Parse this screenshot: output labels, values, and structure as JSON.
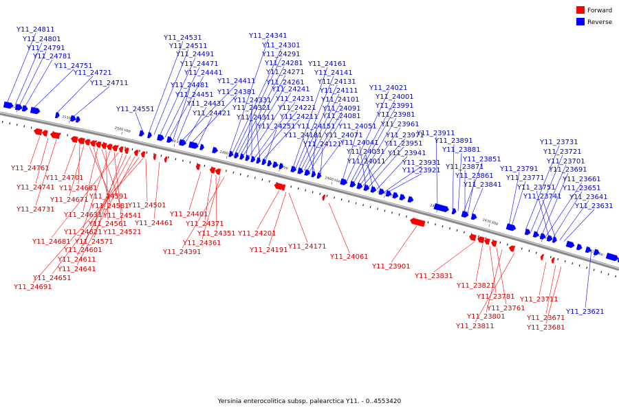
{
  "caption": "Yersinia enterocolitica subsp. palearctica Y11. - 0..4553420",
  "legend": [
    {
      "label": "Forward",
      "color": "#ff0000"
    },
    {
      "label": "Reverse",
      "color": "#0000ff"
    }
  ],
  "scale_labels": [
    {
      "text": "2520 kbp",
      "pos": 2520
    },
    {
      "text": "2510 kbp",
      "pos": 2510
    },
    {
      "text": "2500 kbp",
      "pos": 2500
    },
    {
      "text": "2490 kbp",
      "pos": 2490
    },
    {
      "text": "2480 kbp",
      "pos": 2480
    },
    {
      "text": "2470 kbp",
      "pos": 2470
    },
    {
      "text": "2460 kbp",
      "pos": 2460
    },
    {
      "text": "2450 kbp",
      "pos": 2450
    },
    {
      "text": "2440 kbp",
      "pos": 2440
    },
    {
      "text": "2430 kbp",
      "pos": 2430
    },
    {
      "text": "2420 kbp",
      "pos": 2420
    },
    {
      "text": "2410 kbp",
      "pos": 2410
    }
  ],
  "reverse_labels": [
    "Y11_24811",
    "Y11_24801",
    "Y11_24791",
    "Y11_24781",
    "Y11_24751",
    "Y11_24721",
    "Y11_24711",
    "Y11_24551",
    "Y11_24531",
    "Y11_24511",
    "Y11_24491",
    "Y11_24471",
    "Y11_24441",
    "Y11_24481",
    "Y11_24451",
    "Y11_24411",
    "Y11_24431",
    "Y11_24381",
    "Y11_24421",
    "Y11_24341",
    "Y11_24301",
    "Y11_24291",
    "Y11_24281",
    "Y11_24271",
    "Y11_24261",
    "Y11_24331",
    "Y11_24241",
    "Y11_24321",
    "Y11_24231",
    "Y11_24221",
    "Y11_24311",
    "Y11_24211",
    "Y11_24251",
    "Y11_24161",
    "Y11_24141",
    "Y11_24131",
    "Y11_24111",
    "Y11_24101",
    "Y11_24091",
    "Y11_24081",
    "Y11_24151",
    "Y11_24181",
    "Y11_24071",
    "Y11_24121",
    "Y11_24051",
    "Y11_24021",
    "Y11_24001",
    "Y11_23991",
    "Y11_23981",
    "Y11_23961",
    "Y11_23971",
    "Y11_24041",
    "Y11_23951",
    "Y11_24031",
    "Y11_23941",
    "Y11_24011",
    "Y11_23931",
    "Y11_23921",
    "Y11_23911",
    "Y11_23891",
    "Y11_23881",
    "Y11_23851",
    "Y11_23871",
    "Y11_23861",
    "Y11_23841",
    "Y11_23791",
    "Y11_23771",
    "Y11_23731",
    "Y11_23721",
    "Y11_23701",
    "Y11_23691",
    "Y11_23661",
    "Y11_23751",
    "Y11_23651",
    "Y11_23741",
    "Y11_23641",
    "Y11_23631",
    "Y11_23621"
  ],
  "forward_labels": [
    "Y11_24761",
    "Y11_24741",
    "Y11_24731",
    "Y11_24701",
    "Y11_24661",
    "Y11_24671",
    "Y11_24591",
    "Y11_24581",
    "Y11_24631",
    "Y11_24541",
    "Y11_24561",
    "Y11_24621",
    "Y11_24521",
    "Y11_24681",
    "Y11_24571",
    "Y11_24601",
    "Y11_24611",
    "Y11_24641",
    "Y11_24651",
    "Y11_24691",
    "Y11_24501",
    "Y11_24461",
    "Y11_24401",
    "Y11_24371",
    "Y11_24351",
    "Y11_24361",
    "Y11_24391",
    "Y11_24201",
    "Y11_24191",
    "Y11_24171",
    "Y11_24061",
    "Y11_23901",
    "Y11_23831",
    "Y11_23821",
    "Y11_23781",
    "Y11_23761",
    "Y11_23801",
    "Y11_23811",
    "Y11_23711",
    "Y11_23671",
    "Y11_23681"
  ]
}
